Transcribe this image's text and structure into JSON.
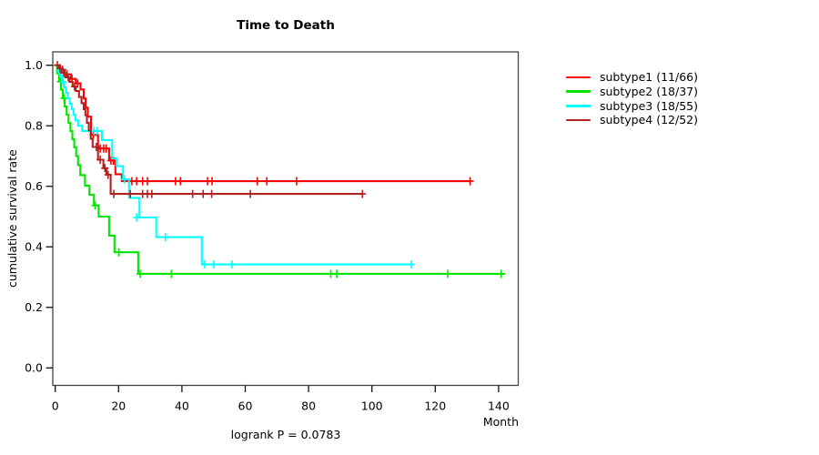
{
  "figure": {
    "title": "Time to Death",
    "annotation": "logrank P = 0.0783"
  },
  "chart_data": {
    "type": "line",
    "subtype": "kaplan-meier-step-curves",
    "title": "Time to Death",
    "xlabel": "Month",
    "ylabel": "cumulative survival rate",
    "annotation": "logrank P = 0.0783",
    "xlim": [
      0,
      147
    ],
    "ylim": [
      0,
      1.05
    ],
    "x_ticks": [
      0,
      20,
      40,
      60,
      80,
      100,
      120,
      140
    ],
    "y_ticks": [
      0.0,
      0.2,
      0.4,
      0.6,
      0.8,
      1.0
    ],
    "y_tick_labels": [
      "0.0",
      "0.2",
      "0.4",
      "0.6",
      "0.8",
      "1.0"
    ],
    "grid": false,
    "legend_position": "right-outside",
    "series": [
      {
        "name": "subtype1",
        "label": "subtype1 (11/66)",
        "color": "#ff0000",
        "steps": [
          [
            0,
            1.0
          ],
          [
            1,
            0.985
          ],
          [
            3,
            0.97
          ],
          [
            5,
            0.955
          ],
          [
            6.5,
            0.94
          ],
          [
            8,
            0.92
          ],
          [
            9,
            0.89
          ],
          [
            9.6,
            0.86
          ],
          [
            10.3,
            0.83
          ],
          [
            11.3,
            0.77
          ],
          [
            13.5,
            0.725
          ],
          [
            17,
            0.685
          ],
          [
            19,
            0.64
          ],
          [
            21,
            0.617
          ],
          [
            131,
            0.617
          ]
        ],
        "censors": [
          [
            0.7,
            1.0
          ],
          [
            1.6,
            0.985
          ],
          [
            2.3,
            0.985
          ],
          [
            3.7,
            0.97
          ],
          [
            5.3,
            0.955
          ],
          [
            7.1,
            0.94
          ],
          [
            12,
            0.77
          ],
          [
            14.2,
            0.725
          ],
          [
            15.3,
            0.725
          ],
          [
            16.1,
            0.725
          ],
          [
            17.6,
            0.685
          ],
          [
            18.4,
            0.685
          ],
          [
            24.2,
            0.617
          ],
          [
            25.7,
            0.617
          ],
          [
            27.6,
            0.617
          ],
          [
            29.1,
            0.617
          ],
          [
            38,
            0.617
          ],
          [
            39.5,
            0.617
          ],
          [
            48.1,
            0.617
          ],
          [
            49.5,
            0.617
          ],
          [
            63.8,
            0.617
          ],
          [
            66.8,
            0.617
          ],
          [
            76.2,
            0.617
          ],
          [
            131,
            0.617
          ]
        ]
      },
      {
        "name": "subtype2",
        "label": "subtype2 (18/37)",
        "color": "#00e600",
        "steps": [
          [
            0,
            1.0
          ],
          [
            0.6,
            0.973
          ],
          [
            1.2,
            0.946
          ],
          [
            1.8,
            0.919
          ],
          [
            2.4,
            0.891
          ],
          [
            3,
            0.864
          ],
          [
            3.6,
            0.837
          ],
          [
            4.2,
            0.81
          ],
          [
            4.8,
            0.783
          ],
          [
            5.4,
            0.756
          ],
          [
            6,
            0.729
          ],
          [
            6.6,
            0.7
          ],
          [
            7.2,
            0.67
          ],
          [
            7.9,
            0.637
          ],
          [
            9.4,
            0.602
          ],
          [
            10.8,
            0.572
          ],
          [
            12.2,
            0.537
          ],
          [
            13.7,
            0.5
          ],
          [
            17,
            0.437
          ],
          [
            18.7,
            0.382
          ],
          [
            26.2,
            0.311
          ],
          [
            142,
            0.311
          ]
        ],
        "censors": [
          [
            1.7,
            0.946
          ],
          [
            2.8,
            0.891
          ],
          [
            12.6,
            0.537
          ],
          [
            20.1,
            0.382
          ],
          [
            26.8,
            0.311
          ],
          [
            36.7,
            0.311
          ],
          [
            87,
            0.311
          ],
          [
            88.9,
            0.311
          ],
          [
            123.9,
            0.311
          ],
          [
            140.8,
            0.311
          ]
        ]
      },
      {
        "name": "subtype3",
        "label": "subtype3 (18/55)",
        "color": "#00ffff",
        "steps": [
          [
            0,
            1.0
          ],
          [
            1,
            0.982
          ],
          [
            1.6,
            0.964
          ],
          [
            2.2,
            0.945
          ],
          [
            2.8,
            0.927
          ],
          [
            3.4,
            0.909
          ],
          [
            4,
            0.891
          ],
          [
            4.6,
            0.873
          ],
          [
            5.2,
            0.855
          ],
          [
            5.8,
            0.836
          ],
          [
            6.4,
            0.818
          ],
          [
            7.2,
            0.8
          ],
          [
            8.5,
            0.783
          ],
          [
            14.7,
            0.753
          ],
          [
            18,
            0.693
          ],
          [
            19.3,
            0.667
          ],
          [
            21.4,
            0.623
          ],
          [
            23.3,
            0.562
          ],
          [
            26.6,
            0.497
          ],
          [
            31.9,
            0.432
          ],
          [
            46.3,
            0.342
          ],
          [
            113,
            0.342
          ]
        ],
        "censors": [
          [
            1.3,
            0.982
          ],
          [
            2.5,
            0.945
          ],
          [
            12.2,
            0.783
          ],
          [
            13.2,
            0.783
          ],
          [
            21.9,
            0.623
          ],
          [
            25.7,
            0.497
          ],
          [
            34.8,
            0.432
          ],
          [
            47.2,
            0.342
          ],
          [
            50.1,
            0.342
          ],
          [
            55.8,
            0.342
          ],
          [
            112.4,
            0.342
          ]
        ]
      },
      {
        "name": "subtype4",
        "label": "subtype4 (12/52)",
        "color": "#b22222",
        "steps": [
          [
            0,
            1.0
          ],
          [
            1,
            0.99
          ],
          [
            2,
            0.975
          ],
          [
            3.2,
            0.96
          ],
          [
            4.5,
            0.945
          ],
          [
            5.5,
            0.93
          ],
          [
            6.5,
            0.915
          ],
          [
            7.5,
            0.895
          ],
          [
            8.3,
            0.875
          ],
          [
            9,
            0.855
          ],
          [
            9.5,
            0.835
          ],
          [
            10,
            0.81
          ],
          [
            10.6,
            0.785
          ],
          [
            11.2,
            0.757
          ],
          [
            11.8,
            0.73
          ],
          [
            13.5,
            0.688
          ],
          [
            15.2,
            0.66
          ],
          [
            16.2,
            0.638
          ],
          [
            17.5,
            0.575
          ],
          [
            97,
            0.575
          ]
        ],
        "censors": [
          [
            1.5,
            0.99
          ],
          [
            2.7,
            0.975
          ],
          [
            4.1,
            0.96
          ],
          [
            6.1,
            0.93
          ],
          [
            13,
            0.73
          ],
          [
            14.2,
            0.688
          ],
          [
            15.7,
            0.66
          ],
          [
            16.7,
            0.638
          ],
          [
            18.5,
            0.575
          ],
          [
            23.7,
            0.575
          ],
          [
            27.6,
            0.575
          ],
          [
            29.1,
            0.575
          ],
          [
            30.5,
            0.575
          ],
          [
            43.4,
            0.575
          ],
          [
            46.7,
            0.575
          ],
          [
            49.4,
            0.575
          ],
          [
            61.6,
            0.575
          ],
          [
            97,
            0.575
          ]
        ]
      }
    ]
  },
  "colors": {
    "axis_box": "#444444",
    "tick": "#111111",
    "text": "#000000",
    "background": "#ffffff"
  }
}
